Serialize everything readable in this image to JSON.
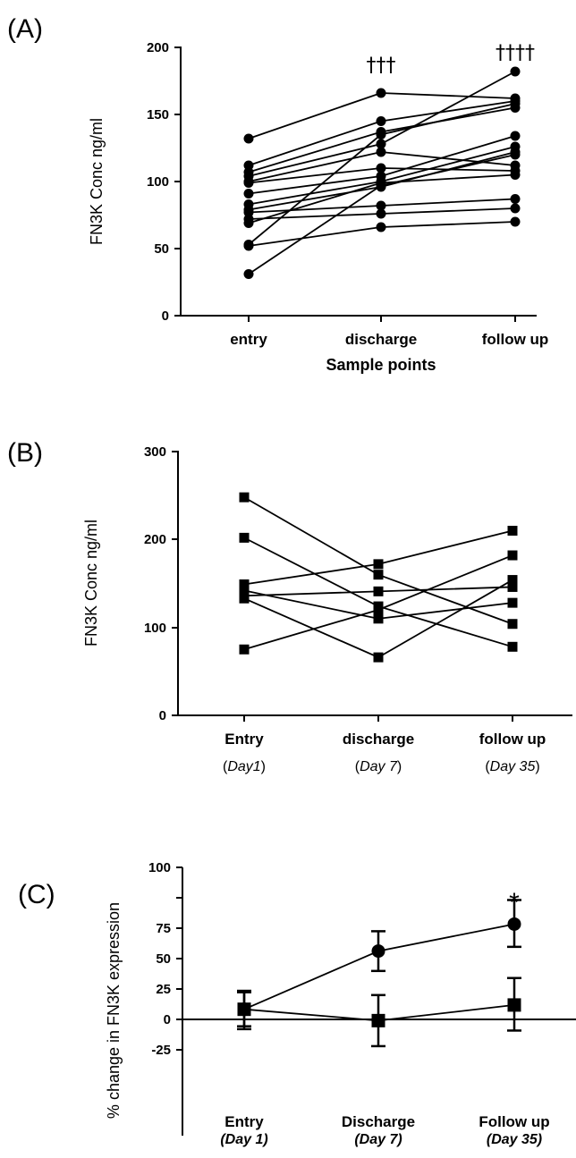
{
  "chart_data": [
    {
      "panel": "(A)",
      "type": "line",
      "ylabel": "FN3K Conc ng/ml",
      "xlabel": "Sample points",
      "ylim": [
        0,
        200
      ],
      "yticks": [
        "0",
        "50",
        "100",
        "150",
        "200"
      ],
      "categories": [
        "entry",
        "discharge",
        "follow up"
      ],
      "annotations": [
        "",
        "†††",
        "††††"
      ],
      "marker": "circle",
      "series": [
        {
          "values": [
            132,
            166,
            162
          ]
        },
        {
          "values": [
            112,
            145,
            160
          ]
        },
        {
          "values": [
            107,
            137,
            155
          ]
        },
        {
          "values": [
            104,
            128,
            182
          ]
        },
        {
          "values": [
            100,
            122,
            112
          ]
        },
        {
          "values": [
            99,
            110,
            108
          ]
        },
        {
          "values": [
            91,
            104,
            134
          ]
        },
        {
          "values": [
            83,
            100,
            126
          ]
        },
        {
          "values": [
            79,
            96,
            122
          ]
        },
        {
          "values": [
            77,
            82,
            87
          ]
        },
        {
          "values": [
            72,
            76,
            80
          ]
        },
        {
          "values": [
            69,
            99,
            105
          ]
        },
        {
          "values": [
            53,
            135,
            158
          ]
        },
        {
          "values": [
            52,
            66,
            70
          ]
        },
        {
          "values": [
            31,
            97,
            120
          ]
        }
      ]
    },
    {
      "panel": "(B)",
      "type": "line",
      "ylabel": "FN3K Conc ng/ml",
      "xlabel": "",
      "ylim": [
        0,
        300
      ],
      "yticks": [
        "0",
        "100",
        "200",
        "300"
      ],
      "categories": [
        {
          "main": "Entry",
          "sub_open": "(",
          "sub_italic": "Day1",
          "sub_close": ")"
        },
        {
          "main": "discharge",
          "sub_open": "(",
          "sub_italic": "Day 7",
          "sub_close": ")"
        },
        {
          "main": "follow up",
          "sub_open": "(",
          "sub_italic": "Day 35",
          "sub_close": ")"
        }
      ],
      "marker": "square",
      "series": [
        {
          "values": [
            248,
            160,
            104
          ]
        },
        {
          "values": [
            202,
            124,
            78
          ]
        },
        {
          "values": [
            149,
            172,
            210
          ]
        },
        {
          "values": [
            142,
            110,
            128
          ]
        },
        {
          "values": [
            136,
            141,
            146
          ]
        },
        {
          "values": [
            133,
            66,
            154
          ]
        },
        {
          "values": [
            75,
            120,
            182
          ]
        }
      ]
    },
    {
      "panel": "(C)",
      "type": "line",
      "ylabel": "% change in FN3K expression",
      "xlabel": "",
      "ylim": [
        -50,
        100
      ],
      "yticks": [
        "-25",
        "0",
        "25",
        "50",
        "75",
        "100"
      ],
      "categories": [
        {
          "main": "Entry",
          "sub": "(Day 1)"
        },
        {
          "main": "Discharge",
          "sub": "(Day 7)"
        },
        {
          "main": "Follow up",
          "sub": "(Day 35)"
        }
      ],
      "annotations": [
        "",
        "",
        "*"
      ],
      "series": [
        {
          "marker": "circle",
          "values": [
            0,
            41,
            60
          ],
          "err_low": [
            -12,
            27,
            44
          ],
          "err_high": [
            12,
            55,
            77
          ]
        },
        {
          "marker": "square",
          "values": [
            0,
            -8,
            3
          ],
          "err_low": [
            -14,
            -26,
            -15
          ],
          "err_high": [
            13,
            10,
            22
          ]
        }
      ]
    }
  ]
}
